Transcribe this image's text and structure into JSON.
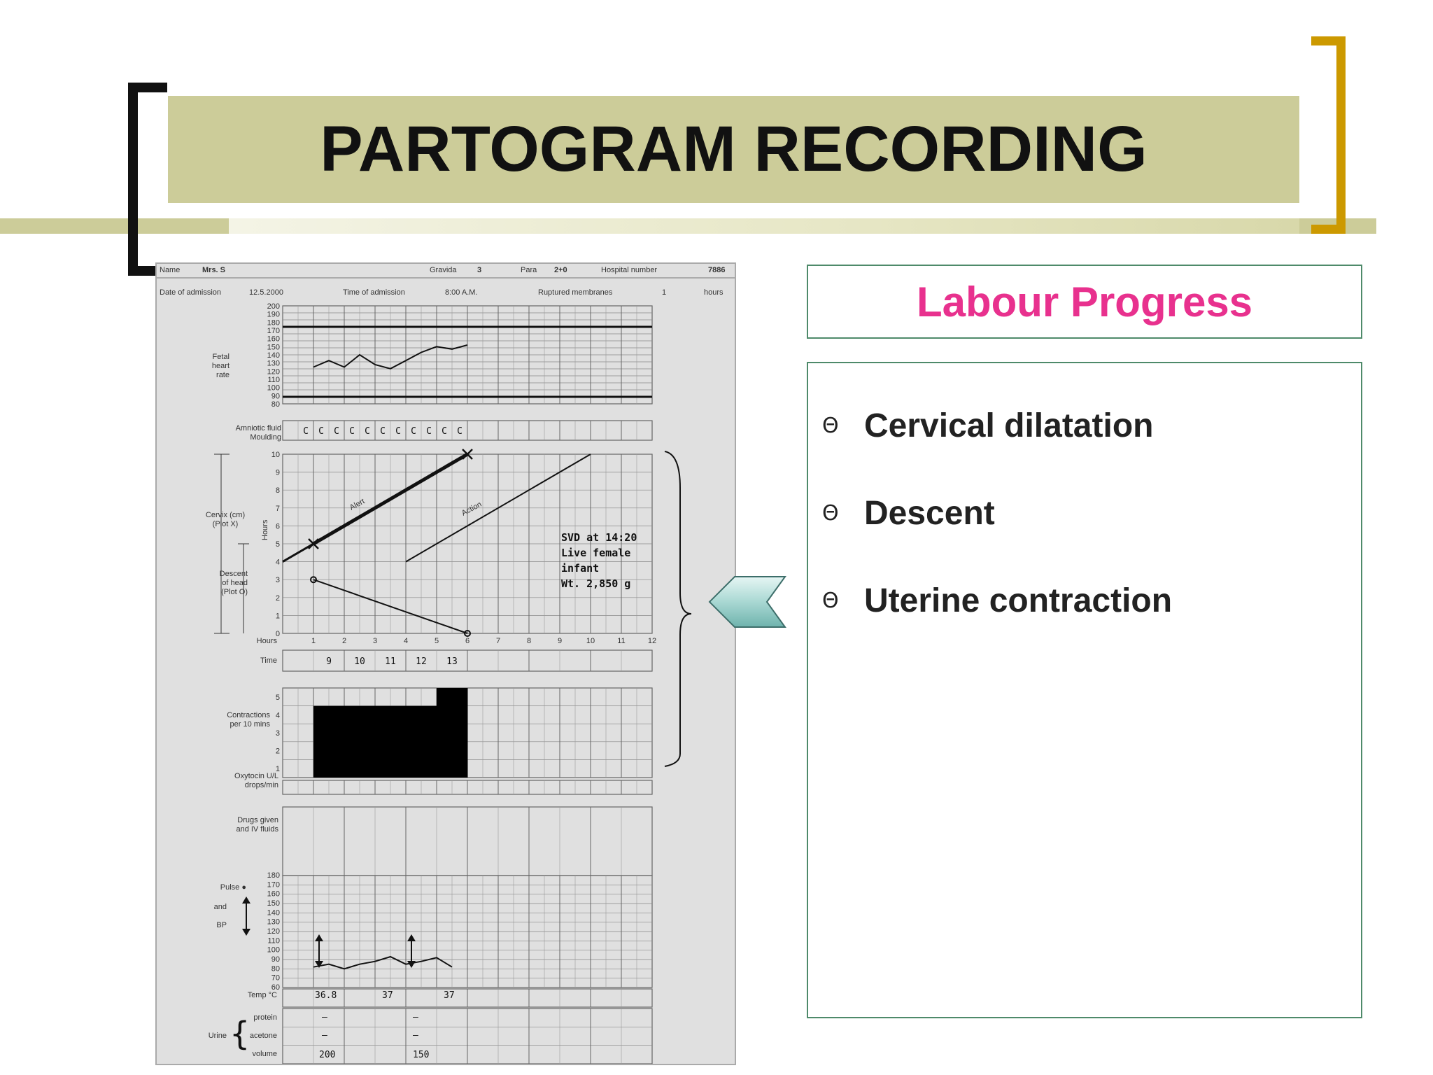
{
  "slide": {
    "title": "PARTOGRAM RECORDING",
    "heading": "Labour Progress",
    "bullets": [
      {
        "icon": "theta-bullet-icon",
        "symbol": "Θ",
        "text": "Cervical dilatation"
      },
      {
        "icon": "theta-bullet-icon",
        "symbol": "Θ",
        "text": "Descent"
      },
      {
        "icon": "theta-bullet-icon",
        "symbol": "Θ",
        "text": "Uterine contraction"
      }
    ],
    "colors": {
      "band": "#cccc99",
      "bracket_right": "#cc9900",
      "heading": "#e8318e",
      "box_border": "#4e8a6a"
    }
  },
  "partogram": {
    "header": {
      "name_label": "Name",
      "name_value": "Mrs. S",
      "gravida_label": "Gravida",
      "gravida_value": "3",
      "para_label": "Para",
      "para_value": "2+0",
      "hospital_label": "Hospital number",
      "hospital_value": "7886",
      "admission_date_label": "Date of admission",
      "admission_date_value": "12.5.2000",
      "admission_time_label": "Time of admission",
      "admission_time_value": "8:00 A.M.",
      "membranes_label": "Ruptured membranes",
      "membranes_value": "1",
      "membranes_unit": "hours"
    },
    "fhr": {
      "label_1": "Fetal",
      "label_2": "heart",
      "label_3": "rate",
      "ticks": [
        "200",
        "190",
        "180",
        "170",
        "160",
        "150",
        "140",
        "130",
        "120",
        "110",
        "100",
        "90",
        "80"
      ],
      "values": [
        125,
        133,
        125,
        140,
        128,
        123,
        133,
        143,
        150,
        147,
        152
      ]
    },
    "amniotic": {
      "label_1": "Amniotic fluid",
      "label_2": "Moulding",
      "marks": [
        "C",
        "C",
        "C",
        "C",
        "C",
        "C",
        "C",
        "C",
        "C",
        "C",
        "C"
      ]
    },
    "cervix": {
      "cervix_label_1": "Cervix (cm)",
      "cervix_label_2": "(Plot X)",
      "hours_axis_label": "Hours",
      "descent_label_1": "Descent",
      "descent_label_2": "of head",
      "descent_label_3": "(Plot O)",
      "ticks": [
        "10",
        "9",
        "8",
        "7",
        "6",
        "5",
        "4",
        "3",
        "2",
        "1",
        "0"
      ],
      "alert_label": "Alert",
      "action_label": "Action",
      "dilatation": [
        {
          "hour": 1,
          "cm": 5
        },
        {
          "hour": 6,
          "cm": 10
        }
      ],
      "descent": [
        {
          "hour": 1,
          "fifths": 3
        },
        {
          "hour": 6,
          "fifths": 0
        }
      ],
      "note_1": "SVD at 14:20",
      "note_2": "Live female",
      "note_3": "infant",
      "note_4": "Wt. 2,850 g"
    },
    "hours": {
      "label": "Hours",
      "values": [
        "1",
        "2",
        "3",
        "4",
        "5",
        "6",
        "7",
        "8",
        "9",
        "10",
        "11",
        "12"
      ]
    },
    "time": {
      "label": "Time",
      "values": [
        "9",
        "10",
        "11",
        "12",
        "13"
      ]
    },
    "contractions": {
      "label_1": "Contractions",
      "label_2": "per 10 mins",
      "ticks": [
        "5",
        "4",
        "3",
        "2",
        "1"
      ],
      "values": [
        4,
        4,
        4,
        4,
        5
      ]
    },
    "oxytocin": {
      "label_1": "Oxytocin U/L",
      "label_2": "drops/min"
    },
    "drugs": {
      "label_1": "Drugs given",
      "label_2": "and IV fluids"
    },
    "pulse": {
      "label_1": "Pulse ●",
      "label_2": "and",
      "label_3": "BP",
      "ticks": [
        "180",
        "170",
        "160",
        "150",
        "140",
        "130",
        "120",
        "110",
        "100",
        "90",
        "80",
        "70",
        "60"
      ],
      "values": [
        82,
        85,
        80,
        85,
        88,
        93,
        85,
        88,
        92,
        82
      ]
    },
    "temp": {
      "label": "Temp °C",
      "values": [
        "36.8",
        "37",
        "37"
      ]
    },
    "urine": {
      "label": "Urine",
      "protein_label": "protein",
      "acetone_label": "acetone",
      "volume_label": "volume",
      "protein_values": [
        "—",
        "—"
      ],
      "acetone_values": [
        "—",
        "—"
      ],
      "volume_values": [
        "200",
        "150"
      ]
    }
  }
}
